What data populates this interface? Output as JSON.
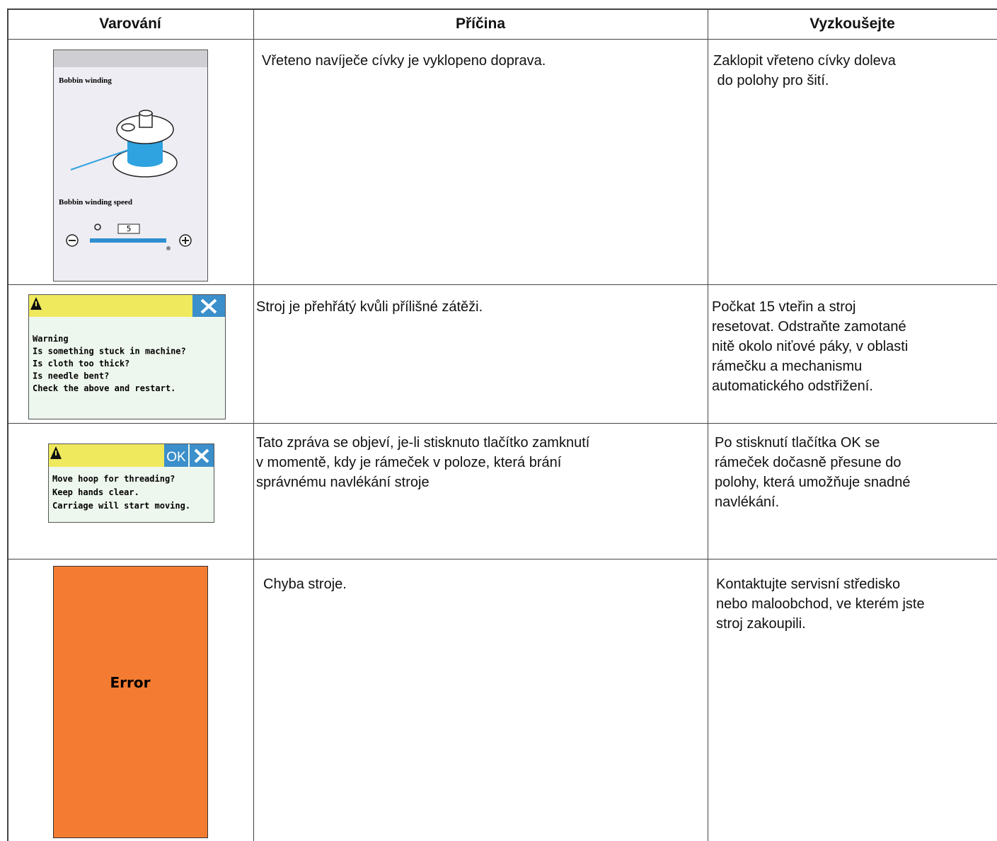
{
  "table": {
    "header": [
      "Varování",
      "Příčina",
      "Vyzkoušejte"
    ],
    "rows": [
      {
        "screen": {
          "title": "Bobbin winding",
          "label": "Bobbin winding speed",
          "value": "5"
        },
        "cause": [
          "Vřeteno navíječe cívky je vyklopeno doprava."
        ],
        "try": [
          "Zaklopit vřeteno cívky doleva",
          " do polohy pro šití."
        ]
      },
      {
        "screen": {
          "lines": [
            "Warning",
            "Is something stuck in machine?",
            "Is cloth too thick?",
            "Is needle bent?",
            "Check the above and restart."
          ]
        },
        "cause": [
          "Stroj je přehřátý kvůli přílišné zátěži."
        ],
        "try": [
          "Počkat 15 vteřin a stroj",
          "resetovat. Odstraňte zamotané",
          "nitě okolo niťové páky, v oblasti",
          "rámečku a mechanismu",
          "automatického odstřižení."
        ]
      },
      {
        "screen": {
          "ok": "OK",
          "lines": [
            "Move hoop for threading?",
            "Keep hands clear.",
            "Carriage will start moving."
          ]
        },
        "cause": [
          "Tato zpráva se objeví, je-li stisknuto tlačítko zamknutí",
          "v momentě, kdy je rámeček v poloze, která brání",
          "správnému navlékání stroje"
        ],
        "try": [
          "Po stisknutí tlačítka OK se",
          "rámeček dočasně přesune do",
          "polohy, která umožňuje snadné",
          "navlékání."
        ]
      },
      {
        "screen": {
          "text": "Error"
        },
        "cause": [
          "Chyba stroje."
        ],
        "try": [
          "Kontaktujte servisní středisko",
          "nebo maloobchod, ve kterém jste",
          "stroj zakoupili."
        ]
      }
    ]
  }
}
